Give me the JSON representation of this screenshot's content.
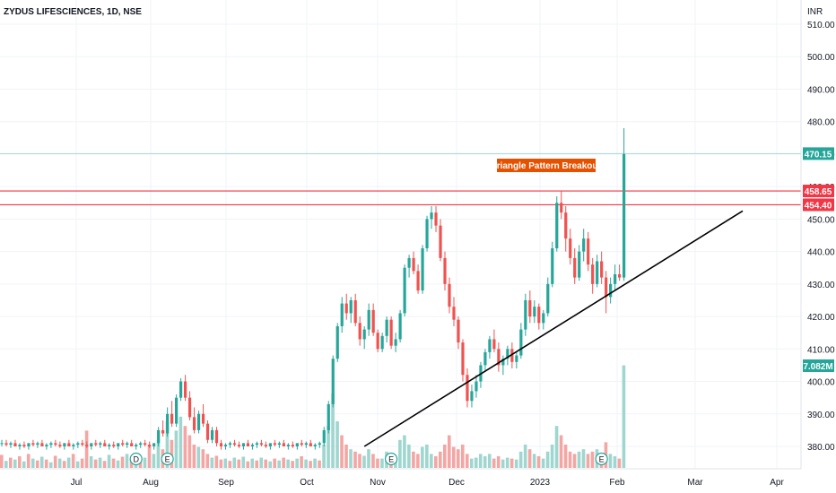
{
  "chart_data": {
    "type": "candlestick",
    "title": "ZYDUS LIFESCIENCES, 1D, NSE",
    "currency": "INR",
    "x_labels": [
      "Jul",
      "Aug",
      "Sep",
      "Oct",
      "Nov",
      "Dec",
      "2023",
      "Feb",
      "Mar",
      "Apr"
    ],
    "y_ticks": [
      380,
      390,
      400,
      410,
      420,
      430,
      440,
      450,
      460,
      470,
      480,
      490,
      500,
      510
    ],
    "ylim": [
      376,
      512
    ],
    "grid": true,
    "price_labels": [
      {
        "value": 470.15,
        "text": "470.15",
        "color": "#26a69a"
      },
      {
        "value": 458.65,
        "text": "458.65",
        "color": "#f23645"
      },
      {
        "value": 454.4,
        "text": "454.40",
        "color": "#f23645"
      }
    ],
    "volume_label": {
      "text": "7.082M",
      "color": "#26a69a"
    },
    "annotation": {
      "text": "Triangle Pattern Breakout",
      "color": "#e65100"
    },
    "horizontal_lines": [
      458.65,
      454.4
    ],
    "trendline": {
      "from_index": 81,
      "from_price": 380,
      "to_index": 160,
      "to_price": 452.5
    },
    "events": [
      {
        "letter": "D",
        "index": 30
      },
      {
        "letter": "E",
        "index": 37
      },
      {
        "letter": "E",
        "index": 87
      },
      {
        "letter": "E",
        "index": 134
      }
    ],
    "ohlc": [
      [
        381,
        382,
        380,
        381
      ],
      [
        381,
        382,
        380,
        380.5
      ],
      [
        380.5,
        381.5,
        379.5,
        381
      ],
      [
        381,
        382,
        380,
        380
      ],
      [
        380,
        381,
        379,
        380.5
      ],
      [
        380.5,
        381.5,
        379.5,
        380
      ],
      [
        380,
        381,
        379,
        381
      ],
      [
        381,
        382,
        380,
        380.5
      ],
      [
        380.5,
        381.5,
        379.5,
        381
      ],
      [
        381,
        382,
        380,
        380
      ],
      [
        380,
        381,
        379,
        380.5
      ],
      [
        380.5,
        381.5,
        379.5,
        381
      ],
      [
        381,
        382,
        380,
        380.5
      ],
      [
        380.5,
        381.5,
        379.5,
        380
      ],
      [
        380,
        381,
        379,
        381
      ],
      [
        381,
        382,
        380,
        380
      ],
      [
        380,
        381,
        379,
        380.5
      ],
      [
        380.5,
        381.5,
        379.5,
        381
      ],
      [
        381,
        382,
        380,
        380.5
      ],
      [
        380.5,
        381.5,
        379.5,
        380
      ],
      [
        380,
        381,
        379,
        381
      ],
      [
        381,
        382,
        380,
        380.5
      ],
      [
        380.5,
        381.5,
        379.5,
        381
      ],
      [
        381,
        382,
        380,
        380
      ],
      [
        380,
        381,
        379,
        380.5
      ],
      [
        380.5,
        381.5,
        379.5,
        380
      ],
      [
        380,
        381,
        379,
        381
      ],
      [
        381,
        382,
        380,
        380.5
      ],
      [
        380.5,
        381.5,
        379.5,
        381
      ],
      [
        381,
        382,
        380,
        380
      ],
      [
        380,
        381,
        379,
        380.5
      ],
      [
        380.5,
        381.5,
        379.5,
        381
      ],
      [
        381,
        382,
        380,
        380.5
      ],
      [
        380.5,
        381.5,
        379.5,
        380
      ],
      [
        380,
        381,
        379,
        381
      ],
      [
        381,
        386,
        380,
        385
      ],
      [
        385,
        388,
        383,
        384
      ],
      [
        384,
        392,
        383,
        390
      ],
      [
        390,
        394,
        386,
        387
      ],
      [
        387,
        396,
        386,
        395
      ],
      [
        395,
        401,
        394,
        400
      ],
      [
        400,
        402,
        394,
        395
      ],
      [
        395,
        397,
        388,
        389
      ],
      [
        389,
        392,
        384,
        385
      ],
      [
        385,
        391,
        384,
        390
      ],
      [
        390,
        393,
        386,
        387
      ],
      [
        387,
        388,
        381,
        382
      ],
      [
        382,
        386,
        381,
        385
      ],
      [
        385,
        386,
        380,
        381
      ],
      [
        381,
        382,
        379,
        380
      ],
      [
        380,
        381,
        379,
        380.5
      ],
      [
        380.5,
        381.5,
        379.5,
        381
      ],
      [
        381,
        382,
        380,
        380.5
      ],
      [
        380.5,
        381.5,
        379.5,
        380
      ],
      [
        380,
        381,
        379,
        381
      ],
      [
        381,
        382,
        380,
        380
      ],
      [
        380,
        381,
        379,
        380.5
      ],
      [
        380.5,
        381.5,
        379.5,
        381
      ],
      [
        381,
        382,
        380,
        380.5
      ],
      [
        380.5,
        381.5,
        379.5,
        380
      ],
      [
        380,
        381,
        379,
        381
      ],
      [
        381,
        382,
        380,
        380.5
      ],
      [
        380.5,
        381.5,
        379.5,
        381
      ],
      [
        381,
        382,
        380,
        380
      ],
      [
        380,
        381,
        379,
        380.5
      ],
      [
        380.5,
        381.5,
        379.5,
        380
      ],
      [
        380,
        381,
        379,
        381
      ],
      [
        381,
        382,
        380,
        380.5
      ],
      [
        380.5,
        381.5,
        379.5,
        381
      ],
      [
        381,
        382,
        380,
        380
      ],
      [
        380,
        381,
        379,
        380.5
      ],
      [
        380.5,
        381.5,
        379.5,
        381
      ],
      [
        381,
        386,
        380,
        385
      ],
      [
        385,
        394,
        384,
        393
      ],
      [
        393,
        408,
        392,
        407
      ],
      [
        407,
        418,
        406,
        417
      ],
      [
        417,
        426,
        415,
        424
      ],
      [
        424,
        427,
        419,
        421
      ],
      [
        421,
        426,
        418,
        425
      ],
      [
        425,
        427,
        417,
        418
      ],
      [
        418,
        420,
        411,
        413
      ],
      [
        413,
        417,
        410,
        416
      ],
      [
        416,
        424,
        414,
        422
      ],
      [
        422,
        424,
        414,
        415
      ],
      [
        415,
        416,
        409,
        410
      ],
      [
        410,
        415,
        409,
        414
      ],
      [
        414,
        420,
        412,
        419
      ],
      [
        419,
        420,
        410,
        411
      ],
      [
        411,
        415,
        409,
        413
      ],
      [
        413,
        422,
        412,
        421
      ],
      [
        421,
        436,
        420,
        435
      ],
      [
        435,
        439,
        432,
        438
      ],
      [
        438,
        440,
        433,
        434
      ],
      [
        434,
        436,
        427,
        428
      ],
      [
        428,
        442,
        427,
        441
      ],
      [
        441,
        451,
        440,
        450
      ],
      [
        450,
        454,
        447,
        452
      ],
      [
        452,
        454,
        446,
        448
      ],
      [
        448,
        450,
        437,
        438
      ],
      [
        438,
        440,
        428,
        430
      ],
      [
        430,
        432,
        421,
        423
      ],
      [
        423,
        426,
        417,
        419
      ],
      [
        419,
        420,
        410,
        412
      ],
      [
        412,
        413,
        400,
        402
      ],
      [
        402,
        404,
        392,
        394
      ],
      [
        394,
        399,
        392,
        397
      ],
      [
        397,
        402,
        395,
        400
      ],
      [
        400,
        406,
        398,
        405
      ],
      [
        405,
        410,
        403,
        409
      ],
      [
        409,
        414,
        407,
        413
      ],
      [
        413,
        416,
        409,
        410
      ],
      [
        410,
        412,
        403,
        405
      ],
      [
        405,
        408,
        402,
        407
      ],
      [
        407,
        411,
        405,
        410
      ],
      [
        410,
        412,
        404,
        406
      ],
      [
        406,
        409,
        404,
        408
      ],
      [
        408,
        418,
        407,
        416
      ],
      [
        416,
        427,
        414,
        425
      ],
      [
        425,
        428,
        418,
        420
      ],
      [
        420,
        425,
        418,
        423
      ],
      [
        423,
        424,
        416,
        418
      ],
      [
        418,
        422,
        416,
        421
      ],
      [
        421,
        432,
        420,
        430
      ],
      [
        430,
        443,
        429,
        441
      ],
      [
        441,
        457,
        440,
        455
      ],
      [
        455,
        458.5,
        450,
        452
      ],
      [
        452,
        454,
        440,
        444
      ],
      [
        444,
        447,
        436,
        438
      ],
      [
        438,
        441,
        430,
        432
      ],
      [
        432,
        442,
        431,
        440
      ],
      [
        440,
        447,
        437,
        444
      ],
      [
        444,
        446,
        434,
        436
      ],
      [
        436,
        438,
        427,
        430
      ],
      [
        430,
        439,
        429,
        437
      ],
      [
        437,
        440,
        430,
        432
      ],
      [
        432,
        434,
        421,
        426
      ],
      [
        426,
        432,
        424,
        430
      ],
      [
        430,
        436,
        428,
        433
      ],
      [
        433,
        436,
        431,
        432
      ],
      [
        432,
        478,
        431,
        470
      ]
    ],
    "volume": [
      [
        0.28,
        "down"
      ],
      [
        0.15,
        "up"
      ],
      [
        0.22,
        "down"
      ],
      [
        0.18,
        "up"
      ],
      [
        0.25,
        "down"
      ],
      [
        0.14,
        "up"
      ],
      [
        0.3,
        "down"
      ],
      [
        0.2,
        "up"
      ],
      [
        0.16,
        "down"
      ],
      [
        0.24,
        "up"
      ],
      [
        0.18,
        "down"
      ],
      [
        0.12,
        "up"
      ],
      [
        0.26,
        "down"
      ],
      [
        0.2,
        "up"
      ],
      [
        0.15,
        "down"
      ],
      [
        0.22,
        "up"
      ],
      [
        0.3,
        "down"
      ],
      [
        0.14,
        "up"
      ],
      [
        0.2,
        "down"
      ],
      [
        0.8,
        "down"
      ],
      [
        0.25,
        "up"
      ],
      [
        0.18,
        "down"
      ],
      [
        0.22,
        "up"
      ],
      [
        0.15,
        "down"
      ],
      [
        0.28,
        "up"
      ],
      [
        0.2,
        "down"
      ],
      [
        0.16,
        "up"
      ],
      [
        0.24,
        "down"
      ],
      [
        0.3,
        "up"
      ],
      [
        0.18,
        "down"
      ],
      [
        0.2,
        "up"
      ],
      [
        0.14,
        "down"
      ],
      [
        0.22,
        "up"
      ],
      [
        0.5,
        "down"
      ],
      [
        0.3,
        "up"
      ],
      [
        0.6,
        "up"
      ],
      [
        0.4,
        "down"
      ],
      [
        1.0,
        "up"
      ],
      [
        0.6,
        "down"
      ],
      [
        0.8,
        "up"
      ],
      [
        1.1,
        "up"
      ],
      [
        0.9,
        "down"
      ],
      [
        0.7,
        "down"
      ],
      [
        0.5,
        "down"
      ],
      [
        0.45,
        "up"
      ],
      [
        0.4,
        "down"
      ],
      [
        0.3,
        "down"
      ],
      [
        0.22,
        "up"
      ],
      [
        0.26,
        "down"
      ],
      [
        0.18,
        "down"
      ],
      [
        0.2,
        "up"
      ],
      [
        0.15,
        "down"
      ],
      [
        0.22,
        "up"
      ],
      [
        0.18,
        "down"
      ],
      [
        0.24,
        "up"
      ],
      [
        0.14,
        "down"
      ],
      [
        0.2,
        "up"
      ],
      [
        0.16,
        "down"
      ],
      [
        0.22,
        "up"
      ],
      [
        0.18,
        "down"
      ],
      [
        0.14,
        "up"
      ],
      [
        0.2,
        "down"
      ],
      [
        0.16,
        "up"
      ],
      [
        0.22,
        "down"
      ],
      [
        0.18,
        "up"
      ],
      [
        0.15,
        "down"
      ],
      [
        0.2,
        "up"
      ],
      [
        0.25,
        "down"
      ],
      [
        0.18,
        "up"
      ],
      [
        0.15,
        "down"
      ],
      [
        0.2,
        "up"
      ],
      [
        0.16,
        "down"
      ],
      [
        0.5,
        "up"
      ],
      [
        0.9,
        "up"
      ],
      [
        1.6,
        "up"
      ],
      [
        1.0,
        "up"
      ],
      [
        0.7,
        "down"
      ],
      [
        0.5,
        "down"
      ],
      [
        0.4,
        "up"
      ],
      [
        0.35,
        "down"
      ],
      [
        0.3,
        "down"
      ],
      [
        0.26,
        "up"
      ],
      [
        0.4,
        "up"
      ],
      [
        0.3,
        "down"
      ],
      [
        0.2,
        "down"
      ],
      [
        0.2,
        "up"
      ],
      [
        0.35,
        "up"
      ],
      [
        0.25,
        "down"
      ],
      [
        0.18,
        "up"
      ],
      [
        0.6,
        "up"
      ],
      [
        0.7,
        "up"
      ],
      [
        0.5,
        "up"
      ],
      [
        0.35,
        "down"
      ],
      [
        0.3,
        "down"
      ],
      [
        0.45,
        "up"
      ],
      [
        0.5,
        "up"
      ],
      [
        0.3,
        "up"
      ],
      [
        0.25,
        "down"
      ],
      [
        0.35,
        "down"
      ],
      [
        0.5,
        "down"
      ],
      [
        0.7,
        "down"
      ],
      [
        0.45,
        "down"
      ],
      [
        0.4,
        "down"
      ],
      [
        0.5,
        "down"
      ],
      [
        0.3,
        "down"
      ],
      [
        0.2,
        "up"
      ],
      [
        0.22,
        "up"
      ],
      [
        0.3,
        "up"
      ],
      [
        0.25,
        "up"
      ],
      [
        0.3,
        "up"
      ],
      [
        0.2,
        "down"
      ],
      [
        0.25,
        "down"
      ],
      [
        0.18,
        "up"
      ],
      [
        0.22,
        "up"
      ],
      [
        0.2,
        "down"
      ],
      [
        0.18,
        "up"
      ],
      [
        0.35,
        "up"
      ],
      [
        0.5,
        "up"
      ],
      [
        0.4,
        "down"
      ],
      [
        0.3,
        "up"
      ],
      [
        0.25,
        "down"
      ],
      [
        0.2,
        "up"
      ],
      [
        0.35,
        "up"
      ],
      [
        0.5,
        "up"
      ],
      [
        0.9,
        "up"
      ],
      [
        0.7,
        "down"
      ],
      [
        0.5,
        "down"
      ],
      [
        0.35,
        "down"
      ],
      [
        0.3,
        "down"
      ],
      [
        0.35,
        "up"
      ],
      [
        0.4,
        "up"
      ],
      [
        0.3,
        "down"
      ],
      [
        0.35,
        "down"
      ],
      [
        0.4,
        "up"
      ],
      [
        0.3,
        "down"
      ],
      [
        0.55,
        "down"
      ],
      [
        0.3,
        "up"
      ],
      [
        0.25,
        "up"
      ],
      [
        0.2,
        "down"
      ],
      [
        2.2,
        "up"
      ]
    ]
  }
}
